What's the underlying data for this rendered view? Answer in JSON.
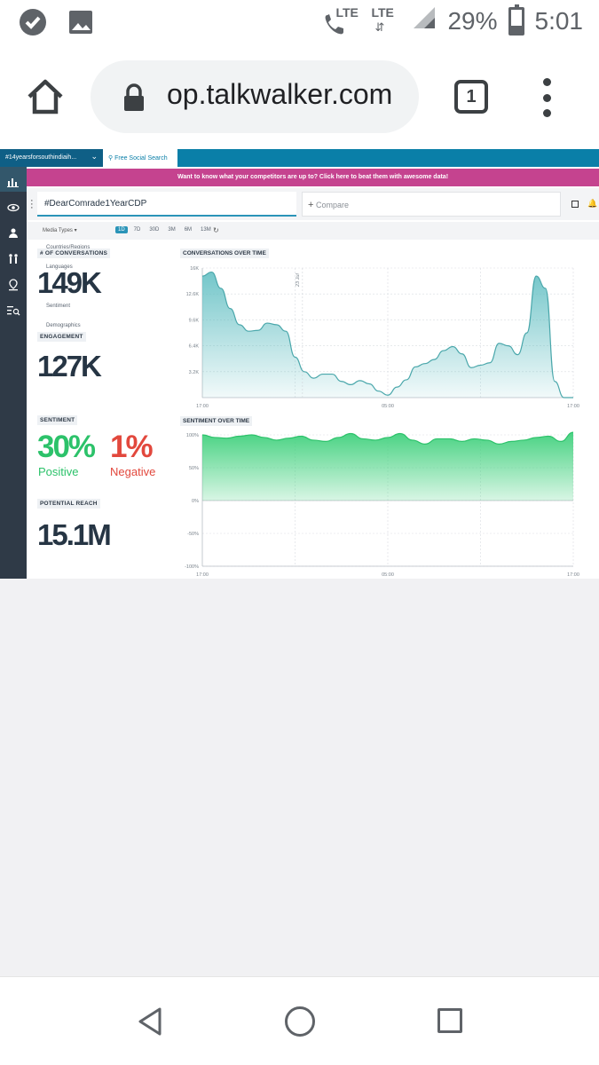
{
  "status_bar": {
    "lte1": "LTE",
    "lte2": "LTE",
    "battery": "29%",
    "time": "5:01",
    "icons": [
      "shield-check-icon",
      "image-icon",
      "phone-lte-icon",
      "signal-icon",
      "battery-icon"
    ]
  },
  "browser": {
    "url": "op.talkwalker.com",
    "tab_count": "1",
    "icons": [
      "home-icon",
      "lock-icon",
      "menu-dots-icon"
    ]
  },
  "page": {
    "tabs": {
      "project_tab": "#14yearsforsouthindiaih...",
      "free_search_tab": "Free Social Search"
    },
    "banner": "Want to know what your competitors are up to? Click here to beat them with awesome data!",
    "search": {
      "query": "#DearComrade1YearCDP",
      "compare_placeholder": "Compare"
    },
    "filters": {
      "media_types": "Media Types",
      "periods": [
        "1D",
        "7D",
        "30D",
        "3M",
        "6M",
        "13M"
      ],
      "active_period": "1D"
    },
    "sidebar_menu": {
      "countries": "Countries/Regions",
      "languages": "Languages",
      "sentiment": "Sentiment",
      "demographics": "Demographics"
    },
    "kpis": {
      "conversations_label": "# OF CONVERSATIONS",
      "conversations_value": "149K",
      "engagement_label": "ENGAGEMENT",
      "engagement_value": "127K",
      "sentiment_label": "SENTIMENT",
      "positive_value": "30%",
      "positive_label": "Positive",
      "negative_value": "1%",
      "negative_label": "Negative",
      "reach_label": "POTENTIAL REACH",
      "reach_value": "15.1M"
    },
    "charts": {
      "conversations_title": "CONVERSATIONS OVER TIME",
      "sentiment_title": "SENTIMENT OVER TIME",
      "date_annotation": "23 Jul"
    }
  },
  "colors": {
    "teal_area": "#5bbcc0",
    "green_area": "#3fd07c",
    "positive": "#2cc26a",
    "negative": "#e2483d",
    "accent": "#0a7fa8"
  },
  "chart_data": [
    {
      "type": "area",
      "title": "CONVERSATIONS OVER TIME",
      "x_ticks": [
        "17:00",
        "05:00",
        "17:00"
      ],
      "y_ticks": [
        "3.2K",
        "6.4K",
        "9.6K",
        "12.6K",
        "16K"
      ],
      "ylim": [
        0,
        16000
      ],
      "x": [
        0,
        1,
        2,
        3,
        4,
        5,
        6,
        7,
        8,
        9,
        10,
        11,
        12,
        13,
        14,
        15,
        16,
        17,
        18,
        19,
        20,
        21,
        22,
        23,
        24,
        25,
        26,
        27,
        28,
        29,
        30,
        31,
        32,
        33,
        34,
        35,
        36,
        37,
        38,
        39,
        40
      ],
      "values": [
        15000,
        15500,
        13500,
        11000,
        9000,
        8200,
        8300,
        9200,
        9000,
        8200,
        5000,
        3200,
        2400,
        2900,
        2900,
        2000,
        1600,
        2100,
        1700,
        800,
        300,
        1300,
        2200,
        3800,
        4200,
        4700,
        5800,
        6300,
        5400,
        3700,
        4000,
        4300,
        6700,
        6400,
        5300,
        8000,
        15000,
        13500,
        2000,
        0,
        0
      ],
      "grid": true
    },
    {
      "type": "area",
      "title": "SENTIMENT OVER TIME",
      "x_ticks": [
        "17:00",
        "05:00",
        "17:00"
      ],
      "y_ticks": [
        "100%",
        "50%",
        "0%",
        "-50%",
        "-100%"
      ],
      "ylim": [
        -100,
        100
      ],
      "x": [
        0,
        1,
        2,
        3,
        4,
        5,
        6,
        7,
        8,
        9,
        10,
        11,
        12,
        13,
        14,
        15,
        16,
        17,
        18,
        19,
        20,
        21,
        22,
        23,
        24,
        25,
        26,
        27,
        28,
        29,
        30
      ],
      "values": [
        100,
        96,
        95,
        98,
        100,
        96,
        92,
        95,
        98,
        92,
        90,
        96,
        102,
        94,
        92,
        96,
        102,
        92,
        86,
        94,
        94,
        90,
        94,
        92,
        86,
        90,
        92,
        96,
        98,
        90,
        104
      ],
      "grid": true
    }
  ]
}
